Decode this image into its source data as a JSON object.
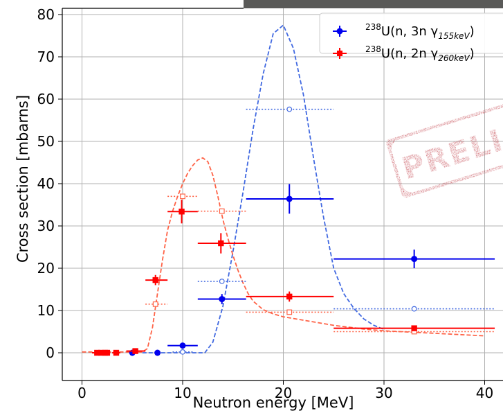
{
  "chart_data": {
    "type": "scatter",
    "xlabel": "Neutron energy [MeV]",
    "ylabel": "Cross section [mbarns]",
    "xlim": [
      -2,
      41
    ],
    "ylim": [
      -4,
      81
    ],
    "x_ticks": [
      0,
      10,
      20,
      30,
      40
    ],
    "y_ticks": [
      0,
      10,
      20,
      30,
      40,
      50,
      60,
      70,
      80
    ],
    "grid": true,
    "legend_position": "top-right",
    "stamp_text": "PRELI",
    "colors": {
      "blue_measured": "#0000ee",
      "blue_model": "#4169e1",
      "red_measured": "#ff0000",
      "red_model": "#ff6347",
      "stamp": "#b8232e",
      "grid": "#b0b0b0"
    },
    "series": [
      {
        "name_sup": "238",
        "name_base": "U(n, 3n γ",
        "name_sub": "155keV",
        "name_end": ")",
        "color": "#0000ee",
        "marker": "circle",
        "points": [
          {
            "x": 5.0,
            "y": 0.0,
            "xlo": 5.0,
            "xhi": 5.0,
            "yerr": 0.0
          },
          {
            "x": 7.5,
            "y": 0.0,
            "xlo": 7.5,
            "xhi": 7.5,
            "yerr": 0.0
          },
          {
            "x": 10.0,
            "y": 1.7,
            "xlo": 8.5,
            "xhi": 11.5,
            "yerr": 0.5
          },
          {
            "x": 13.9,
            "y": 12.7,
            "xlo": 11.5,
            "xhi": 16.3,
            "yerr": 1.2
          },
          {
            "x": 20.6,
            "y": 36.4,
            "xlo": 16.3,
            "xhi": 25.0,
            "yerr": 3.5
          },
          {
            "x": 33.0,
            "y": 22.2,
            "xlo": 25.0,
            "xhi": 41.0,
            "yerr": 2.2
          }
        ]
      },
      {
        "name_sup": "238",
        "name_base": "U(n, 2n γ",
        "name_sub": "260keV",
        "name_end": ")",
        "color": "#ff0000",
        "marker": "square",
        "points": [
          {
            "x": 1.5,
            "y": 0.0,
            "xlo": 1.0,
            "xhi": 2.0,
            "yerr": 0.0
          },
          {
            "x": 1.9,
            "y": 0.0,
            "xlo": 1.5,
            "xhi": 2.3,
            "yerr": 0.0
          },
          {
            "x": 2.3,
            "y": 0.0,
            "xlo": 2.0,
            "xhi": 2.6,
            "yerr": 0.0
          },
          {
            "x": 2.5,
            "y": 0.0,
            "xlo": 2.3,
            "xhi": 2.8,
            "yerr": 0.0
          },
          {
            "x": 3.4,
            "y": 0.0,
            "xlo": 3.0,
            "xhi": 3.8,
            "yerr": 0.0
          },
          {
            "x": 5.3,
            "y": 0.4,
            "xlo": 4.4,
            "xhi": 6.3,
            "yerr": 0.3
          },
          {
            "x": 7.3,
            "y": 17.2,
            "xlo": 6.3,
            "xhi": 8.5,
            "yerr": 1.2
          },
          {
            "x": 9.9,
            "y": 33.4,
            "xlo": 8.5,
            "xhi": 11.5,
            "yerr": 2.8
          },
          {
            "x": 13.8,
            "y": 25.9,
            "xlo": 11.5,
            "xhi": 16.3,
            "yerr": 2.4
          },
          {
            "x": 20.6,
            "y": 13.3,
            "xlo": 16.3,
            "xhi": 25.0,
            "yerr": 1.2
          },
          {
            "x": 33.0,
            "y": 5.8,
            "xlo": 25.0,
            "xhi": 41.0,
            "yerr": 0.5
          }
        ]
      }
    ],
    "model_points": [
      {
        "color": "#4169e1",
        "marker": "open-circle",
        "points": [
          {
            "x": 10.0,
            "y": 0.2,
            "xlo": 9.0,
            "xhi": 11.0
          },
          {
            "x": 13.9,
            "y": 16.9,
            "xlo": 11.5,
            "xhi": 16.3
          },
          {
            "x": 20.6,
            "y": 57.6,
            "xlo": 16.3,
            "xhi": 25.0
          },
          {
            "x": 33.0,
            "y": 10.4,
            "xlo": 25.0,
            "xhi": 41.0
          }
        ]
      },
      {
        "color": "#ff6347",
        "marker": "open-square",
        "points": [
          {
            "x": 7.3,
            "y": 11.5,
            "xlo": 6.3,
            "xhi": 8.5
          },
          {
            "x": 10.0,
            "y": 37.0,
            "xlo": 8.5,
            "xhi": 11.5
          },
          {
            "x": 13.9,
            "y": 33.5,
            "xlo": 11.5,
            "xhi": 16.3
          },
          {
            "x": 20.6,
            "y": 9.6,
            "xlo": 16.3,
            "xhi": 25.0
          },
          {
            "x": 33.0,
            "y": 5.0,
            "xlo": 25.0,
            "xhi": 41.0
          }
        ]
      }
    ],
    "model_curves": [
      {
        "color": "#4169e1",
        "points": [
          [
            6,
            0
          ],
          [
            12.2,
            0
          ],
          [
            13,
            2.5
          ],
          [
            14,
            11
          ],
          [
            15,
            24
          ],
          [
            16,
            38
          ],
          [
            17,
            53
          ],
          [
            18,
            66
          ],
          [
            19,
            75.5
          ],
          [
            20,
            77.5
          ],
          [
            21,
            72
          ],
          [
            22,
            61
          ],
          [
            23,
            46
          ],
          [
            24,
            32
          ],
          [
            25,
            20
          ],
          [
            26,
            14
          ],
          [
            27,
            10.5
          ],
          [
            28,
            8
          ],
          [
            29,
            6.5
          ],
          [
            30,
            5.5
          ]
        ]
      },
      {
        "color": "#ff6347",
        "points": [
          [
            0,
            0.2
          ],
          [
            6,
            0.2
          ],
          [
            6.5,
            1
          ],
          [
            7,
            6
          ],
          [
            7.5,
            14
          ],
          [
            8,
            22
          ],
          [
            8.5,
            29
          ],
          [
            9,
            33.5
          ],
          [
            9.5,
            37
          ],
          [
            10,
            40
          ],
          [
            10.5,
            42.5
          ],
          [
            11,
            44.3
          ],
          [
            11.5,
            45.6
          ],
          [
            12,
            46.1
          ],
          [
            12.5,
            45.2
          ],
          [
            13,
            42
          ],
          [
            13.5,
            37
          ],
          [
            14,
            31.5
          ],
          [
            14.5,
            27
          ],
          [
            15,
            23
          ],
          [
            15.5,
            19.5
          ],
          [
            16,
            16.5
          ],
          [
            16.5,
            14
          ],
          [
            17,
            12.2
          ],
          [
            18,
            10.2
          ],
          [
            19,
            9.2
          ],
          [
            20,
            8.5
          ],
          [
            22,
            7.7
          ],
          [
            25,
            6.5
          ],
          [
            28,
            5.6
          ],
          [
            30,
            5.2
          ],
          [
            35,
            4.6
          ],
          [
            40,
            4
          ]
        ]
      }
    ]
  }
}
